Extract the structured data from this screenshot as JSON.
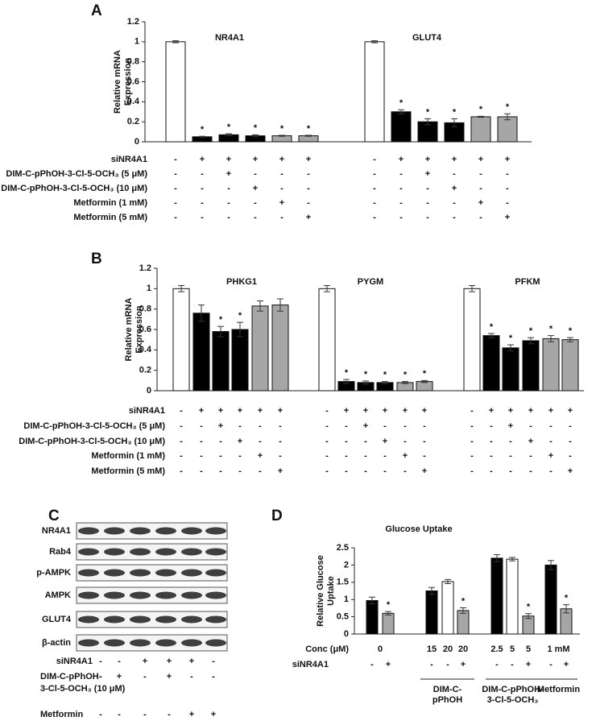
{
  "panel_labels": [
    "A",
    "B",
    "C",
    "D"
  ],
  "chart_data": [
    {
      "type": "bar",
      "ylabel": [
        "Relative mRNA",
        "Expression"
      ],
      "ylim": [
        0,
        1.2
      ],
      "yticks": [
        0,
        0.2,
        0.4,
        0.6,
        0.8,
        1,
        1.2
      ],
      "groups": [
        {
          "title": "NR4A1",
          "values": [
            1.0,
            0.05,
            0.07,
            0.06,
            0.06,
            0.06
          ],
          "errors": [
            0.01,
            0.005,
            0.01,
            0.01,
            0.005,
            0.005
          ],
          "colors": [
            "#ffffff",
            "#000000",
            "#000000",
            "#000000",
            "#a6a6a6",
            "#a6a6a6"
          ],
          "stars": [
            null,
            "*",
            "*",
            "*",
            "*",
            "*"
          ]
        },
        {
          "title": "GLUT4",
          "values": [
            1.0,
            0.3,
            0.2,
            0.19,
            0.25,
            0.25
          ],
          "errors": [
            0.01,
            0.02,
            0.03,
            0.04,
            0.005,
            0.03
          ],
          "colors": [
            "#ffffff",
            "#000000",
            "#000000",
            "#000000",
            "#a6a6a6",
            "#a6a6a6"
          ],
          "stars": [
            null,
            "*",
            "*",
            "*",
            "*",
            "*"
          ]
        }
      ],
      "treatments": [
        {
          "label": "siNR4A1",
          "signs": [
            "-",
            "+",
            "+",
            "+",
            "+",
            "+",
            "-",
            "+",
            "+",
            "+",
            "+",
            "+"
          ]
        },
        {
          "label": "DIM-C-pPhOH-3-Cl-5-OCH₃ (5 μM)",
          "signs": [
            "-",
            "-",
            "+",
            "-",
            "-",
            "-",
            "-",
            "-",
            "+",
            "-",
            "-",
            "-"
          ]
        },
        {
          "label": "DIM-C-pPhOH-3-Cl-5-OCH₃ (10 μM)",
          "signs": [
            "-",
            "-",
            "-",
            "+",
            "-",
            "-",
            "-",
            "-",
            "-",
            "+",
            "-",
            "-"
          ]
        },
        {
          "label": "Metformin (1 mM)",
          "signs": [
            "-",
            "-",
            "-",
            "-",
            "+",
            "-",
            "-",
            "-",
            "-",
            "-",
            "+",
            "-"
          ]
        },
        {
          "label": "Metformin (5 mM)",
          "signs": [
            "-",
            "-",
            "-",
            "-",
            "-",
            "+",
            "-",
            "-",
            "-",
            "-",
            "-",
            "+"
          ]
        }
      ]
    },
    {
      "type": "bar",
      "ylabel": [
        "Relative mRNA",
        "Expression"
      ],
      "ylim": [
        0,
        1.2
      ],
      "yticks": [
        0,
        0.2,
        0.4,
        0.6,
        0.8,
        1,
        1.2
      ],
      "groups": [
        {
          "title": "PHKG1",
          "values": [
            1.0,
            0.76,
            0.58,
            0.6,
            0.83,
            0.84
          ],
          "errors": [
            0.03,
            0.08,
            0.05,
            0.07,
            0.05,
            0.06
          ],
          "colors": [
            "#ffffff",
            "#000000",
            "#000000",
            "#000000",
            "#a6a6a6",
            "#a6a6a6"
          ],
          "stars": [
            null,
            null,
            "*",
            "*",
            null,
            null
          ]
        },
        {
          "title": "PYGM",
          "values": [
            1.0,
            0.09,
            0.08,
            0.08,
            0.08,
            0.09
          ],
          "errors": [
            0.03,
            0.02,
            0.015,
            0.01,
            0.01,
            0.01
          ],
          "colors": [
            "#ffffff",
            "#000000",
            "#000000",
            "#000000",
            "#a6a6a6",
            "#a6a6a6"
          ],
          "stars": [
            null,
            "*",
            "*",
            "*",
            "*",
            "*"
          ]
        },
        {
          "title": "PFKM",
          "values": [
            1.0,
            0.54,
            0.42,
            0.49,
            0.51,
            0.5
          ],
          "errors": [
            0.03,
            0.02,
            0.03,
            0.03,
            0.03,
            0.02
          ],
          "colors": [
            "#ffffff",
            "#000000",
            "#000000",
            "#000000",
            "#a6a6a6",
            "#a6a6a6"
          ],
          "stars": [
            null,
            "*",
            "*",
            "*",
            "*",
            "*"
          ]
        }
      ],
      "treatments": [
        {
          "label": "siNR4A1",
          "signs": [
            "-",
            "+",
            "+",
            "+",
            "+",
            "+",
            "-",
            "+",
            "+",
            "+",
            "+",
            "+",
            "-",
            "+",
            "+",
            "+",
            "+",
            "+"
          ]
        },
        {
          "label": "DIM-C-pPhOH-3-Cl-5-OCH₃ (5 μM)",
          "signs": [
            "-",
            "-",
            "+",
            "-",
            "-",
            "-",
            "-",
            "-",
            "+",
            "-",
            "-",
            "-",
            "-",
            "-",
            "+",
            "-",
            "-",
            "-"
          ]
        },
        {
          "label": "DIM-C-pPhOH-3-Cl-5-OCH₃ (10 μM)",
          "signs": [
            "-",
            "-",
            "-",
            "+",
            "-",
            "-",
            "-",
            "-",
            "-",
            "+",
            "-",
            "-",
            "-",
            "-",
            "-",
            "+",
            "-",
            "-"
          ]
        },
        {
          "label": "Metformin (1 mM)",
          "signs": [
            "-",
            "-",
            "-",
            "-",
            "+",
            "-",
            "-",
            "-",
            "-",
            "-",
            "+",
            "-",
            "-",
            "-",
            "-",
            "-",
            "+",
            "-"
          ]
        },
        {
          "label": "Metformin (5 mM)",
          "signs": [
            "-",
            "-",
            "-",
            "-",
            "-",
            "+",
            "-",
            "-",
            "-",
            "-",
            "-",
            "+",
            "-",
            "-",
            "-",
            "-",
            "-",
            "+"
          ]
        }
      ]
    },
    {
      "type": "bar",
      "title": "Glucose Uptake",
      "ylabel": [
        "Relative Glucose",
        "Uptake"
      ],
      "ylim": [
        0,
        2.5
      ],
      "yticks": [
        0,
        0.5,
        1,
        1.5,
        2,
        2.5
      ],
      "row_labels": [
        "Conc (μM)",
        "siNR4A1"
      ],
      "groups": [
        {
          "values": [
            0.97,
            0.6
          ],
          "errors": [
            0.1,
            0.05
          ],
          "colors": [
            "#000000",
            "#a6a6a6"
          ],
          "stars": [
            null,
            "*"
          ],
          "conc": [
            "0"
          ],
          "signs": [
            "-",
            "+"
          ]
        },
        {
          "values": [
            1.25,
            1.52,
            0.68
          ],
          "errors": [
            0.1,
            0.06,
            0.08
          ],
          "colors": [
            "#000000",
            "#ffffff",
            "#a6a6a6"
          ],
          "stars": [
            null,
            null,
            "*"
          ],
          "conc": [
            "15",
            "20",
            "20"
          ],
          "signs": [
            "-",
            "-",
            "+"
          ],
          "label": [
            "DIM-C-",
            "pPhOH"
          ]
        },
        {
          "values": [
            2.2,
            2.17,
            0.52
          ],
          "errors": [
            0.1,
            0.05,
            0.07
          ],
          "colors": [
            "#000000",
            "#ffffff",
            "#a6a6a6"
          ],
          "stars": [
            null,
            null,
            "*"
          ],
          "conc": [
            "2.5",
            "5",
            "5"
          ],
          "signs": [
            "-",
            "-",
            "+"
          ],
          "label": [
            "DIM-C-pPhOH-",
            "3-Cl-5-OCH₃"
          ]
        },
        {
          "values": [
            2.0,
            0.73
          ],
          "errors": [
            0.13,
            0.12
          ],
          "colors": [
            "#000000",
            "#a6a6a6"
          ],
          "stars": [
            null,
            "*"
          ],
          "conc": [
            "1 mM"
          ],
          "signs": [
            "-",
            "+"
          ],
          "label": [
            "Metformin"
          ]
        }
      ]
    }
  ],
  "blot": {
    "proteins": [
      "NR4A1",
      "Rab4",
      "p-AMPK",
      "AMPK",
      "GLUT4",
      "β-actin"
    ],
    "treatments": [
      {
        "label": [
          "siNR4A1"
        ],
        "signs": [
          "-",
          "-",
          "+",
          "+",
          "+",
          "-"
        ]
      },
      {
        "label": [
          "DIM-C-pPhOH-",
          "3-Cl-5-OCH₃ (10 μM)"
        ],
        "signs": [
          "-",
          "+",
          "-",
          "+",
          "-",
          "-"
        ]
      },
      {
        "label": [
          "Metformin"
        ],
        "signs": [
          "-",
          "-",
          "-",
          "-",
          "+",
          "+"
        ]
      }
    ]
  }
}
